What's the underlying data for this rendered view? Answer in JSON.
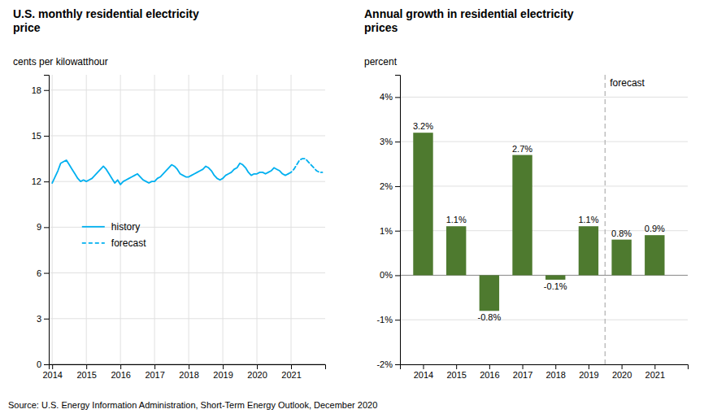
{
  "chart_data": [
    {
      "type": "line",
      "title": "U.S. monthly residential electricity\nprice",
      "y_label": "cents per kilowatthour",
      "series": [
        {
          "name": "history",
          "color": "#00b0f0",
          "line_style": "solid",
          "x": [
            2014.0,
            2014.083,
            2014.167,
            2014.25,
            2014.333,
            2014.417,
            2014.5,
            2014.583,
            2014.667,
            2014.75,
            2014.833,
            2014.917,
            2015.0,
            2015.083,
            2015.167,
            2015.25,
            2015.333,
            2015.417,
            2015.5,
            2015.583,
            2015.667,
            2015.75,
            2015.833,
            2015.917,
            2016.0,
            2016.083,
            2016.167,
            2016.25,
            2016.333,
            2016.417,
            2016.5,
            2016.583,
            2016.667,
            2016.75,
            2016.833,
            2016.917,
            2017.0,
            2017.083,
            2017.167,
            2017.25,
            2017.333,
            2017.417,
            2017.5,
            2017.583,
            2017.667,
            2017.75,
            2017.833,
            2017.917,
            2018.0,
            2018.083,
            2018.167,
            2018.25,
            2018.333,
            2018.417,
            2018.5,
            2018.583,
            2018.667,
            2018.75,
            2018.833,
            2018.917,
            2019.0,
            2019.083,
            2019.167,
            2019.25,
            2019.333,
            2019.417,
            2019.5,
            2019.583,
            2019.667,
            2019.75,
            2019.833,
            2019.917,
            2020.0,
            2020.083,
            2020.167,
            2020.25,
            2020.333,
            2020.417,
            2020.5,
            2020.583,
            2020.667,
            2020.75,
            2020.833,
            2020.917
          ],
          "values": [
            11.9,
            12.3,
            12.7,
            13.2,
            13.3,
            13.4,
            13.1,
            12.8,
            12.5,
            12.2,
            12.0,
            12.1,
            12.0,
            12.1,
            12.2,
            12.4,
            12.6,
            12.8,
            13.0,
            12.8,
            12.5,
            12.2,
            11.9,
            12.1,
            11.8,
            12.0,
            12.1,
            12.2,
            12.3,
            12.4,
            12.5,
            12.3,
            12.1,
            12.0,
            11.9,
            12.0,
            12.0,
            12.2,
            12.3,
            12.5,
            12.7,
            12.9,
            13.1,
            13.0,
            12.8,
            12.5,
            12.4,
            12.3,
            12.3,
            12.4,
            12.5,
            12.6,
            12.7,
            12.8,
            13.0,
            12.9,
            12.7,
            12.4,
            12.2,
            12.1,
            12.2,
            12.4,
            12.5,
            12.6,
            12.8,
            12.9,
            13.2,
            13.1,
            12.9,
            12.6,
            12.4,
            12.5,
            12.5,
            12.6,
            12.6,
            12.5,
            12.6,
            12.7,
            12.9,
            12.8,
            12.7,
            12.5,
            12.4,
            12.5
          ]
        },
        {
          "name": "forecast",
          "color": "#00b0f0",
          "line_style": "dashed",
          "x": [
            2020.917,
            2021.0,
            2021.083,
            2021.167,
            2021.25,
            2021.333,
            2021.417,
            2021.5,
            2021.583,
            2021.667,
            2021.75,
            2021.833,
            2021.917
          ],
          "values": [
            12.5,
            12.6,
            12.8,
            13.1,
            13.4,
            13.5,
            13.5,
            13.3,
            13.1,
            12.9,
            12.7,
            12.6,
            12.6
          ]
        }
      ],
      "xlim": [
        2013.9,
        2022.0
      ],
      "xticks": [
        2014,
        2015,
        2016,
        2017,
        2018,
        2019,
        2020,
        2021
      ],
      "ylim": [
        0,
        19
      ],
      "yticks": [
        0,
        3,
        6,
        9,
        12,
        15,
        18
      ],
      "grid": true,
      "legend": "left",
      "source": "Source: U.S. Energy Information Administration, Short-Term Energy Outlook, December 2020"
    },
    {
      "type": "bar",
      "title": "Annual growth in residential electricity\nprices",
      "y_label": "percent",
      "x": [
        2014,
        2015,
        2016,
        2017,
        2018,
        2019,
        2020,
        2021
      ],
      "values": [
        3.2,
        1.1,
        -0.8,
        2.7,
        -0.1,
        1.1,
        0.8,
        0.9
      ],
      "value_labels": [
        "3.2%",
        "1.1%",
        "-0.8%",
        "2.7%",
        "-0.1%",
        "1.1%",
        "0.8%",
        "0.9%"
      ],
      "data_labels": true,
      "color": "#4e7a2f",
      "xlim": [
        2013.3,
        2022.0
      ],
      "xticks": [
        2014,
        2015,
        2016,
        2017,
        2018,
        2019,
        2020,
        2021
      ],
      "ylim": [
        -2,
        4.5
      ],
      "yticks": [
        {
          "value": -2,
          "label": "-2%"
        },
        {
          "value": -1,
          "label": "-1%"
        },
        {
          "value": 0,
          "label": "0%"
        },
        {
          "value": 1,
          "label": "1%"
        },
        {
          "value": 2,
          "label": "2%"
        },
        {
          "value": 3,
          "label": "3%"
        },
        {
          "value": 4,
          "label": "4%"
        }
      ],
      "grid": "y",
      "reference_line": {
        "x": 2019.5,
        "label": "forecast",
        "color": "#b0b0b0",
        "line_style": "dashed"
      }
    }
  ]
}
